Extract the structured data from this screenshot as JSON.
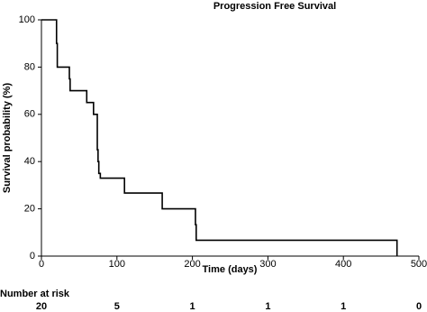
{
  "chart_data": {
    "type": "step",
    "title": "Progression Free Survival",
    "x_label": "Time (days)",
    "y_label": "Survival probability (%)",
    "x": [
      0,
      20,
      21,
      37,
      38,
      60,
      69,
      74,
      75,
      76,
      78,
      110,
      160,
      204,
      205,
      471
    ],
    "values": [
      100,
      90,
      80,
      75,
      70,
      65,
      60,
      45,
      40,
      35,
      33,
      26.7,
      20,
      13.3,
      6.7,
      0
    ],
    "color": "#000000",
    "xlim": [
      0,
      500
    ],
    "xticks": [
      0,
      100,
      200,
      300,
      400,
      500
    ],
    "ylim": [
      0,
      100
    ],
    "yticks": [
      0,
      20,
      40,
      60,
      80,
      100
    ],
    "at_risk": {
      "label": "Number at risk",
      "values": [
        20,
        5,
        1,
        1,
        1,
        0
      ]
    }
  }
}
